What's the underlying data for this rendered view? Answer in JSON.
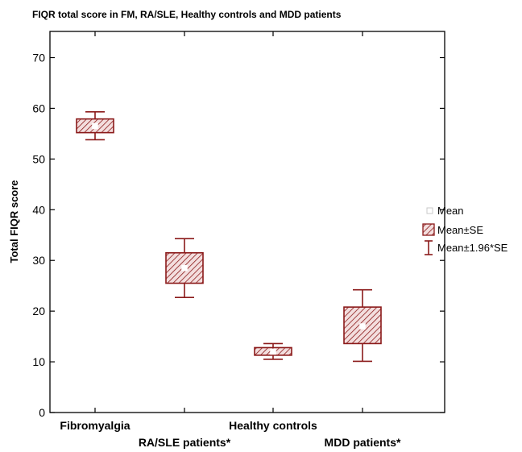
{
  "chart_data": {
    "type": "box",
    "title": "FIQR total score in FM, RA/SLE, Healthy controls and MDD patients",
    "ylabel": "Total FIQR score",
    "xlabel": "",
    "ylim": [
      0,
      75
    ],
    "yticks": [
      0,
      10,
      20,
      30,
      40,
      50,
      60,
      70
    ],
    "categories": [
      "Fibromyalgia",
      "RA/SLE patients*",
      "Healthy controls",
      "MDD patients*"
    ],
    "series": [
      {
        "category": "Fibromyalgia",
        "mean": 56.5,
        "se_low": 55.2,
        "se_high": 57.9,
        "ci_low": 53.8,
        "ci_high": 59.3
      },
      {
        "category": "RA/SLE patients*",
        "mean": 28.5,
        "se_low": 25.5,
        "se_high": 31.5,
        "ci_low": 22.7,
        "ci_high": 34.3
      },
      {
        "category": "Healthy controls",
        "mean": 12.0,
        "se_low": 11.3,
        "se_high": 12.8,
        "ci_low": 10.5,
        "ci_high": 13.6
      },
      {
        "category": "MDD patients*",
        "mean": 17.0,
        "se_low": 13.6,
        "se_high": 20.8,
        "ci_low": 10.1,
        "ci_high": 24.2
      }
    ],
    "legend": {
      "position": "right",
      "items": [
        "Mean",
        "Mean±SE",
        "Mean±1.96*SE"
      ]
    },
    "colors": {
      "box": "#8b1a1a",
      "mean_marker": "#ffffff"
    },
    "grid": false
  }
}
